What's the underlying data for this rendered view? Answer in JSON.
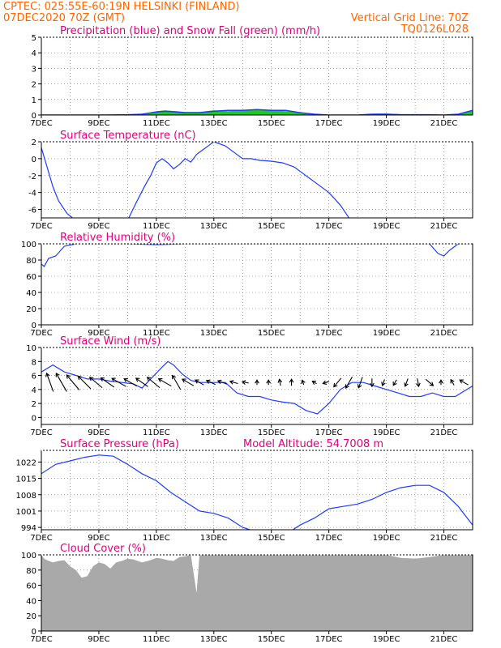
{
  "header": {
    "station": "CPTEC:   025:55E-60:19N   HELSINKI (FINLAND)",
    "init": "07DEC2020 70Z (GMT)",
    "grid_note": "Vertical Grid Line: 70Z",
    "code": "TQ0126L028"
  },
  "colors": {
    "header": "#ff6600",
    "title": "#e0007a",
    "line": "#1e3cff",
    "precip": "#1e3cff",
    "snow": "#1ec81e",
    "cloud": "#a9a9a9",
    "arrow": "#000000"
  },
  "x_labels": [
    "7DEC",
    "9DEC",
    "11DEC",
    "13DEC",
    "15DEC",
    "17DEC",
    "19DEC",
    "21DEC"
  ],
  "chart_data": [
    {
      "id": "precip",
      "type": "area",
      "title": "Precipitation (blue) and Snow Fall (green) (mm/h)",
      "ylim": [
        0,
        5
      ],
      "yticks": [
        0,
        1,
        2,
        3,
        4,
        5
      ],
      "x_days": [
        0,
        2,
        3,
        3.5,
        4,
        4.3,
        4.7,
        5,
        5.5,
        6,
        6.5,
        7,
        7.5,
        8,
        8.5,
        9,
        9.5,
        10,
        10.5,
        11,
        11.5,
        12,
        12.5,
        13,
        13.5,
        14,
        14.5,
        15
      ],
      "precip": [
        0,
        0,
        0.02,
        0.05,
        0.2,
        0.25,
        0.2,
        0.15,
        0.15,
        0.25,
        0.3,
        0.3,
        0.35,
        0.3,
        0.3,
        0.15,
        0.05,
        0,
        0,
        0,
        0.05,
        0.05,
        0.02,
        0.02,
        0.02,
        0,
        0.05,
        0.3
      ],
      "snow": [
        0,
        0,
        0.02,
        0.05,
        0.25,
        0.3,
        0.25,
        0.2,
        0.2,
        0.3,
        0.25,
        0.3,
        0.35,
        0.3,
        0.25,
        0.15,
        0.05,
        0,
        0,
        0,
        0.08,
        0.1,
        0.05,
        0.02,
        0.02,
        0,
        0.05,
        0.3
      ]
    },
    {
      "id": "temp",
      "type": "line",
      "title": "Surface Temperature (nC)",
      "ylim": [
        -7,
        2
      ],
      "yticks": [
        -6,
        -4,
        -2,
        0,
        2
      ],
      "x_days": [
        0,
        0.2,
        0.4,
        0.6,
        0.9,
        1.2,
        1.6,
        2,
        2.5,
        3,
        3.3,
        3.6,
        3.8,
        4,
        4.2,
        4.4,
        4.6,
        4.8,
        5,
        5.2,
        5.4,
        5.6,
        5.8,
        6,
        6.4,
        6.8,
        7,
        7.3,
        7.6,
        8,
        8.4,
        8.8,
        9.2,
        9.6,
        10,
        10.4,
        10.8,
        11,
        11.2
      ],
      "values": [
        1.3,
        -1,
        -3.3,
        -5,
        -6.5,
        -7.3,
        -7.5,
        -7.5,
        -7.5,
        -7.3,
        -5.2,
        -3.2,
        -2,
        -0.5,
        0,
        -0.5,
        -1.2,
        -0.7,
        0,
        -0.4,
        0.5,
        1,
        1.5,
        2,
        1.5,
        0.5,
        0,
        0,
        -0.2,
        -0.3,
        -0.5,
        -1,
        -2,
        -3,
        -4,
        -5.5,
        -7.5,
        -8,
        -8.5
      ]
    },
    {
      "id": "rh",
      "type": "line",
      "title": "Relative Humidity (%)",
      "ylim": [
        0,
        100
      ],
      "yticks": [
        0,
        20,
        40,
        60,
        80,
        100
      ],
      "x_days": [
        0,
        0.1,
        0.25,
        0.5,
        0.8,
        1.2,
        2,
        3,
        4,
        5,
        6,
        7,
        8,
        9,
        10,
        11,
        12,
        13,
        13.5,
        13.8,
        14,
        14.2,
        14.5,
        15
      ],
      "values": [
        75,
        72,
        82,
        85,
        97,
        100,
        100,
        100,
        99,
        100,
        100,
        100,
        100,
        100,
        100,
        100,
        100,
        100,
        100,
        88,
        85,
        92,
        100,
        100
      ]
    },
    {
      "id": "wind",
      "type": "line",
      "title": "Surface Wind (m/s)",
      "ylim": [
        -1,
        10
      ],
      "yticks": [
        0,
        2,
        4,
        6,
        8,
        10
      ],
      "x_days": [
        0,
        0.4,
        0.8,
        1.2,
        1.6,
        2,
        2.4,
        2.8,
        3.2,
        3.5,
        3.8,
        4.2,
        4.4,
        4.6,
        4.9,
        5.2,
        5.5,
        5.8,
        6.1,
        6.4,
        6.8,
        7.2,
        7.6,
        8,
        8.4,
        8.8,
        9.2,
        9.6,
        10,
        10.4,
        10.8,
        11.2,
        11.6,
        12,
        12.4,
        12.8,
        13.2,
        13.6,
        14,
        14.4,
        14.8,
        15
      ],
      "values": [
        6.5,
        7.5,
        6.5,
        6,
        5.5,
        5.5,
        5.2,
        5,
        4.8,
        4.2,
        5.5,
        7.2,
        8,
        7.5,
        6.2,
        5.3,
        5,
        5,
        5,
        5,
        3.5,
        3,
        3,
        2.5,
        2.2,
        2,
        1,
        0.5,
        2,
        4,
        5,
        5,
        4.5,
        4,
        3.5,
        3,
        3,
        3.5,
        3,
        3,
        4,
        4.5
      ],
      "arrows": [
        {
          "x": 0.3,
          "dir": 340,
          "len": 6
        },
        {
          "x": 0.7,
          "dir": 330,
          "len": 6.5
        },
        {
          "x": 1.1,
          "dir": 320,
          "len": 6
        },
        {
          "x": 1.5,
          "dir": 315,
          "len": 5.5
        },
        {
          "x": 1.9,
          "dir": 310,
          "len": 5
        },
        {
          "x": 2.3,
          "dir": 305,
          "len": 5
        },
        {
          "x": 2.7,
          "dir": 300,
          "len": 5
        },
        {
          "x": 3.1,
          "dir": 300,
          "len": 4.5
        },
        {
          "x": 3.5,
          "dir": 305,
          "len": 4.5
        },
        {
          "x": 3.9,
          "dir": 310,
          "len": 5
        },
        {
          "x": 4.3,
          "dir": 300,
          "len": 4.5
        },
        {
          "x": 4.7,
          "dir": 330,
          "len": 5
        },
        {
          "x": 5.1,
          "dir": 300,
          "len": 4
        },
        {
          "x": 5.5,
          "dir": 300,
          "len": 3
        },
        {
          "x": 5.9,
          "dir": 295,
          "len": 3
        },
        {
          "x": 6.3,
          "dir": 290,
          "len": 3
        },
        {
          "x": 6.7,
          "dir": 285,
          "len": 2.5
        },
        {
          "x": 7.1,
          "dir": 280,
          "len": 2
        },
        {
          "x": 7.5,
          "dir": 0,
          "len": 1.5
        },
        {
          "x": 7.9,
          "dir": 0,
          "len": 1.5
        },
        {
          "x": 8.3,
          "dir": 350,
          "len": 2
        },
        {
          "x": 8.7,
          "dir": 0,
          "len": 2
        },
        {
          "x": 9.1,
          "dir": 340,
          "len": 1.5
        },
        {
          "x": 9.5,
          "dir": 300,
          "len": 1.5
        },
        {
          "x": 9.9,
          "dir": 250,
          "len": 2
        },
        {
          "x": 10.3,
          "dir": 220,
          "len": 3.5
        },
        {
          "x": 10.7,
          "dir": 210,
          "len": 4
        },
        {
          "x": 11.1,
          "dir": 200,
          "len": 3.5
        },
        {
          "x": 11.5,
          "dir": 180,
          "len": 2.5
        },
        {
          "x": 11.9,
          "dir": 200,
          "len": 2
        },
        {
          "x": 12.3,
          "dir": 210,
          "len": 2
        },
        {
          "x": 12.7,
          "dir": 200,
          "len": 2.5
        },
        {
          "x": 13.1,
          "dir": 170,
          "len": 2.5
        },
        {
          "x": 13.5,
          "dir": 130,
          "len": 3
        },
        {
          "x": 13.9,
          "dir": 0,
          "len": 1.5
        },
        {
          "x": 14.3,
          "dir": 330,
          "len": 2
        },
        {
          "x": 14.7,
          "dir": 300,
          "len": 3
        }
      ]
    },
    {
      "id": "pressure",
      "type": "line",
      "title": "Surface Pressure (hPa)",
      "subtitle": "Model Altitude: 54.7008 m",
      "ylim": [
        993,
        1027
      ],
      "yticks": [
        994,
        1001,
        1008,
        1015,
        1022
      ],
      "x_days": [
        0,
        0.5,
        1,
        1.5,
        2,
        2.5,
        3,
        3.5,
        4,
        4.5,
        5,
        5.5,
        6,
        6.5,
        7,
        7.5,
        8,
        8.5,
        9,
        9.5,
        10,
        10.5,
        11,
        11.5,
        12,
        12.5,
        13,
        13.5,
        14,
        14.5,
        15
      ],
      "values": [
        1017,
        1021,
        1022.5,
        1024,
        1025,
        1024.5,
        1021,
        1017,
        1014,
        1009,
        1005,
        1001,
        1000,
        998,
        994,
        992,
        990,
        991,
        995,
        998,
        1002,
        1003,
        1004,
        1006,
        1009,
        1011,
        1012,
        1012,
        1009,
        1003,
        995
      ]
    },
    {
      "id": "cloud",
      "type": "area",
      "title": "Cloud Cover (%)",
      "ylim": [
        0,
        100
      ],
      "yticks": [
        0,
        20,
        40,
        60,
        80,
        100
      ],
      "x_days": [
        0,
        0.1,
        0.2,
        0.4,
        0.6,
        0.8,
        1,
        1.2,
        1.4,
        1.6,
        1.8,
        2,
        2.2,
        2.4,
        2.6,
        2.8,
        3,
        3.2,
        3.5,
        3.8,
        4,
        4.2,
        4.4,
        4.6,
        4.8,
        5,
        5.2,
        5.4,
        5.5,
        5.6,
        6,
        7,
        8,
        9,
        10,
        11,
        12,
        12.5,
        13,
        13.5,
        14,
        14.5,
        15
      ],
      "values": [
        100,
        95,
        93,
        90,
        92,
        93,
        85,
        80,
        70,
        72,
        85,
        90,
        88,
        82,
        90,
        92,
        95,
        94,
        90,
        93,
        96,
        95,
        93,
        92,
        97,
        98,
        100,
        50,
        100,
        100,
        100,
        100,
        100,
        100,
        100,
        100,
        100,
        96,
        95,
        97,
        100,
        100,
        100
      ]
    }
  ]
}
